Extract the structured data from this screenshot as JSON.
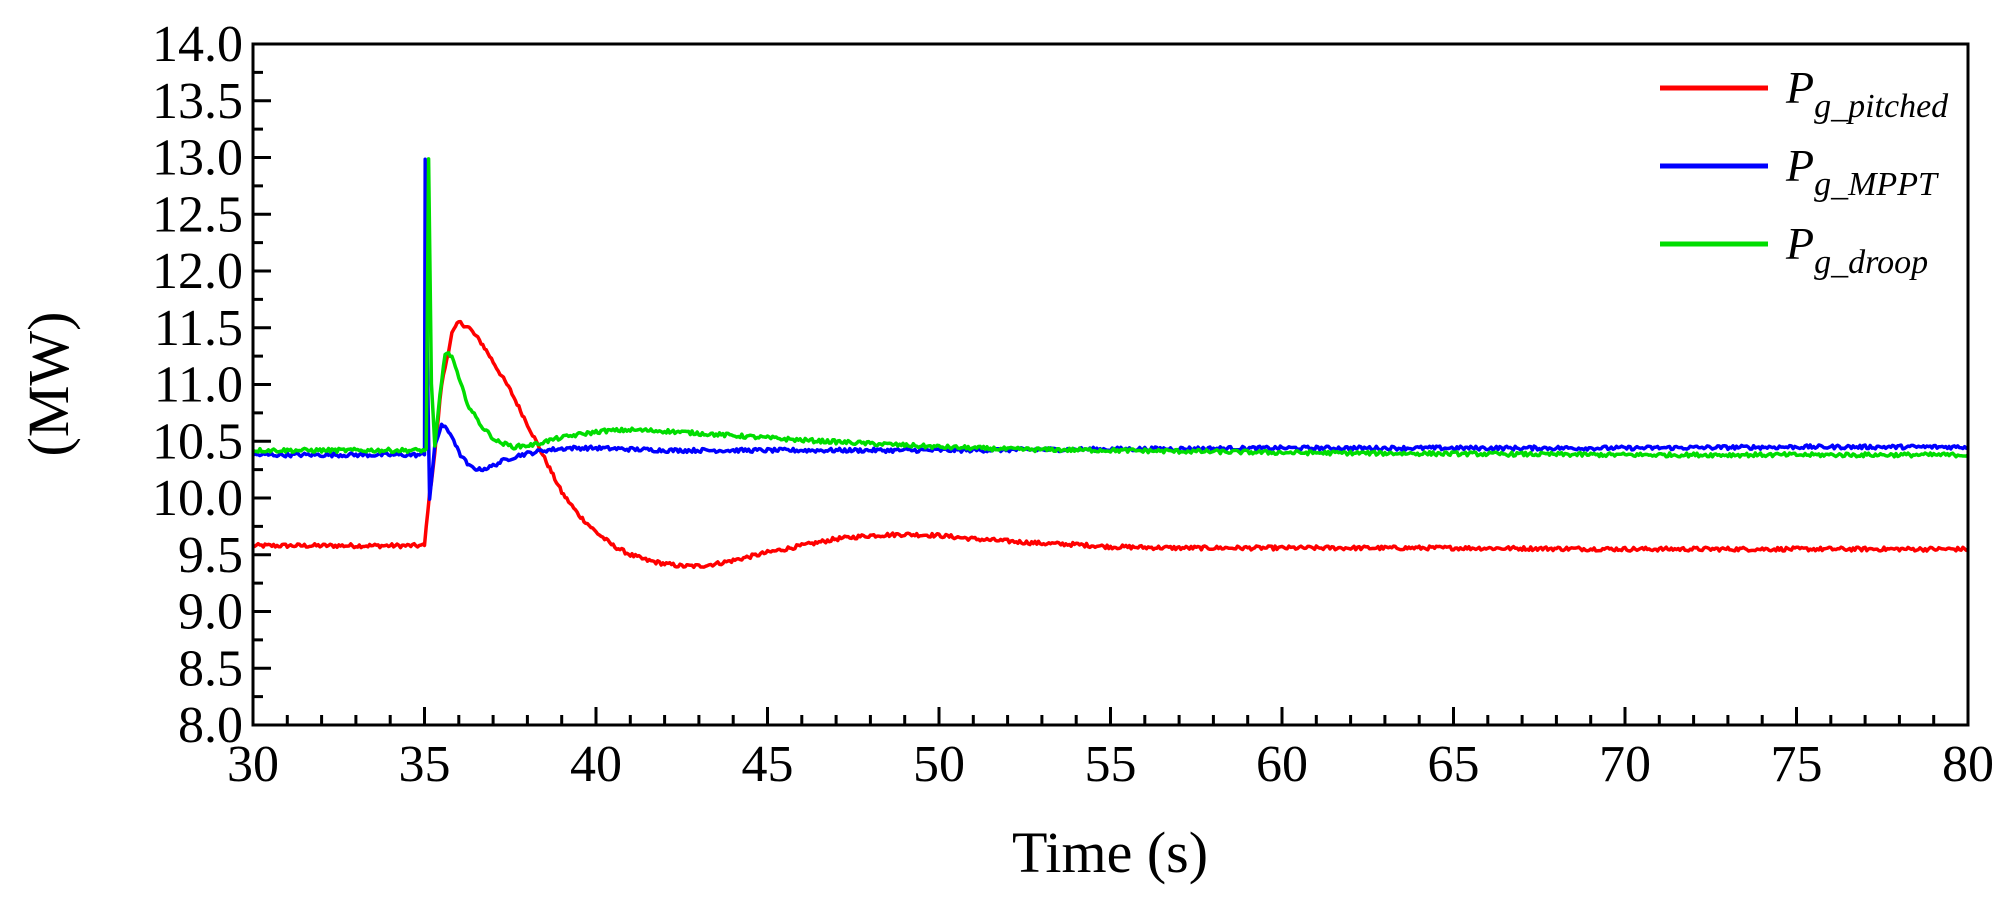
{
  "chart_data": {
    "type": "line",
    "title": "",
    "xlabel": "Time (s)",
    "ylabel": "(MW)",
    "xlim": [
      30,
      80
    ],
    "ylim": [
      8.0,
      14.0
    ],
    "xticks": [
      30,
      35,
      40,
      45,
      50,
      55,
      60,
      65,
      70,
      75,
      80
    ],
    "xtick_labels": [
      "30",
      "35",
      "40",
      "45",
      "50",
      "55",
      "60",
      "65",
      "70",
      "75",
      "80"
    ],
    "yticks": [
      8.0,
      8.5,
      9.0,
      9.5,
      10.0,
      10.5,
      11.0,
      11.5,
      12.0,
      12.5,
      13.0,
      13.5,
      14.0
    ],
    "ytick_labels": [
      "8.0",
      "8.5",
      "9.0",
      "9.5",
      "10.0",
      "10.5",
      "11.0",
      "11.5",
      "12.0",
      "12.5",
      "13.0",
      "13.5",
      "14.0"
    ],
    "grid": false,
    "legend_position": "top-right",
    "series": [
      {
        "name": "Pg_pitched",
        "legend_main": "P",
        "legend_sub": "g_pitched",
        "color": "#ff0000",
        "x": [
          30,
          34.9,
          35.0,
          35.1,
          35.3,
          35.5,
          35.8,
          36.0,
          36.3,
          36.7,
          37.0,
          37.5,
          38.0,
          38.5,
          39.0,
          39.5,
          40.0,
          40.5,
          41.0,
          41.5,
          42.0,
          42.5,
          43.0,
          43.5,
          44.0,
          45.0,
          46.0,
          47.0,
          48.0,
          49.0,
          50.0,
          51.0,
          52.0,
          53.0,
          54.0,
          55.0,
          57.0,
          60.0,
          65.0,
          70.0,
          75.0,
          80.0
        ],
        "y": [
          9.58,
          9.58,
          9.58,
          9.9,
          10.4,
          11.0,
          11.45,
          11.55,
          11.5,
          11.35,
          11.2,
          10.95,
          10.65,
          10.35,
          10.05,
          9.85,
          9.7,
          9.58,
          9.5,
          9.45,
          9.42,
          9.4,
          9.4,
          9.42,
          9.45,
          9.52,
          9.58,
          9.64,
          9.67,
          9.68,
          9.67,
          9.64,
          9.62,
          9.6,
          9.59,
          9.57,
          9.56,
          9.56,
          9.56,
          9.55,
          9.55,
          9.55
        ]
      },
      {
        "name": "Pg_MPPT",
        "legend_main": "P",
        "legend_sub": "g_MPPT",
        "color": "#0000ff",
        "x": [
          30,
          34.9,
          35.0,
          35.02,
          35.08,
          35.15,
          35.3,
          35.5,
          35.8,
          36.0,
          36.3,
          36.6,
          36.9,
          37.3,
          37.8,
          38.5,
          39.2,
          40.0,
          41.0,
          42.0,
          44.0,
          46.0,
          50.0,
          55.0,
          60.0,
          65.0,
          70.0,
          75.0,
          80.0
        ],
        "y": [
          10.38,
          10.38,
          10.38,
          13.0,
          11.3,
          10.0,
          10.45,
          10.65,
          10.55,
          10.4,
          10.28,
          10.25,
          10.27,
          10.33,
          10.38,
          10.42,
          10.44,
          10.44,
          10.43,
          10.42,
          10.42,
          10.42,
          10.42,
          10.43,
          10.44,
          10.44,
          10.44,
          10.45,
          10.45
        ]
      },
      {
        "name": "Pg_droop",
        "legend_main": "P",
        "legend_sub": "g_droop",
        "color": "#00dd00",
        "x": [
          30,
          35.05,
          35.12,
          35.2,
          35.3,
          35.45,
          35.6,
          35.8,
          36.0,
          36.3,
          36.7,
          37.1,
          37.6,
          38.2,
          38.8,
          39.5,
          40.2,
          41.0,
          42.0,
          43.0,
          44.0,
          45.0,
          46.0,
          48.0,
          50.0,
          52.0,
          55.0,
          60.0,
          65.0,
          70.0,
          75.0,
          80.0
        ],
        "y": [
          10.42,
          10.42,
          13.0,
          11.0,
          10.45,
          10.9,
          11.28,
          11.25,
          11.05,
          10.8,
          10.62,
          10.5,
          10.45,
          10.47,
          10.52,
          10.56,
          10.59,
          10.6,
          10.59,
          10.57,
          10.55,
          10.53,
          10.51,
          10.48,
          10.45,
          10.43,
          10.42,
          10.4,
          10.39,
          10.38,
          10.38,
          10.38
        ]
      }
    ]
  }
}
